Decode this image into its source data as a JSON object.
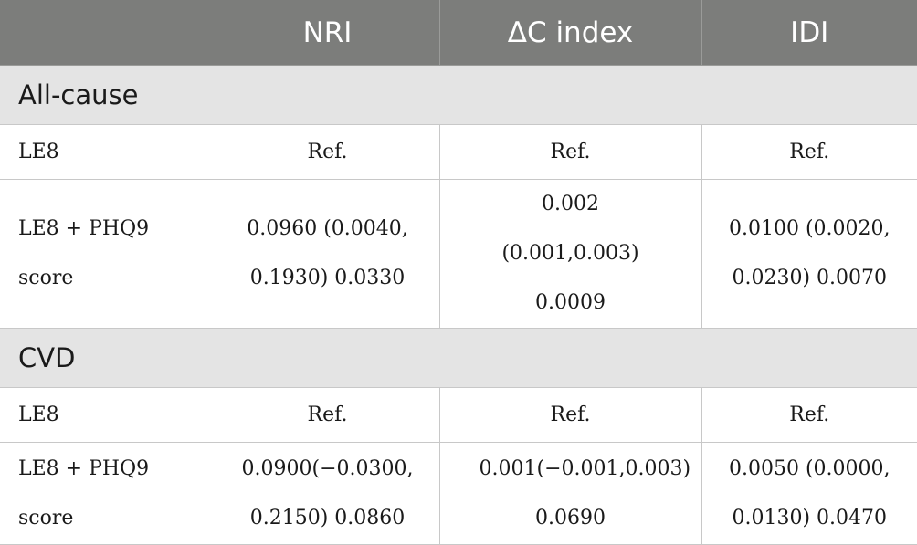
{
  "header": {
    "col0": "",
    "col1": "NRI",
    "col2": "ΔC index",
    "col3": "IDI"
  },
  "groups": [
    {
      "name": "All-cause",
      "rows": [
        {
          "label": "LE8",
          "nri": "Ref.",
          "dc": "Ref.",
          "idi": "Ref."
        },
        {
          "label": "LE8 + PHQ9 score",
          "nri": "0.0960 (0.0040, 0.1930) 0.0330",
          "dc": "0.002 (0.001,0.003) 0.0009",
          "idi": "0.0100 (0.0020, 0.0230) 0.0070"
        }
      ]
    },
    {
      "name": "CVD",
      "rows": [
        {
          "label": "LE8",
          "nri": "Ref.",
          "dc": "Ref.",
          "idi": "Ref."
        },
        {
          "label": "LE8 + PHQ9 score",
          "nri": "0.0900(−0.0300, 0.2150) 0.0860",
          "dc": "0.001(−0.001,0.003) 0.0690",
          "idi": "0.0050 (0.0000, 0.0130) 0.0470"
        }
      ]
    }
  ]
}
